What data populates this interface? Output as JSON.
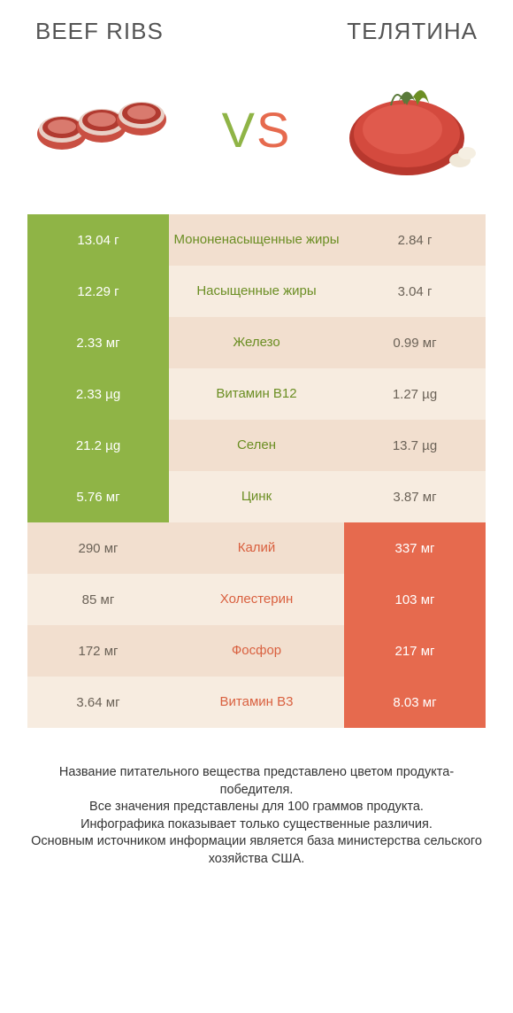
{
  "header": {
    "left": "Beef ribs",
    "right": "Телятина"
  },
  "vs": {
    "v": "V",
    "s": "S"
  },
  "colors": {
    "green": "#8fb446",
    "orange": "#e66a4e",
    "row_bg": "#f2dfcf",
    "row_bg_alt": "#f7ece0",
    "mid_green": "#6b8e23",
    "mid_orange": "#d9603f",
    "text": "#333333",
    "header_text": "#555555"
  },
  "rows": [
    {
      "left": "13.04 г",
      "mid": "Мононенасыщенные жиры",
      "right": "2.84 г",
      "winner": "left"
    },
    {
      "left": "12.29 г",
      "mid": "Насыщенные жиры",
      "right": "3.04 г",
      "winner": "left"
    },
    {
      "left": "2.33 мг",
      "mid": "Железо",
      "right": "0.99 мг",
      "winner": "left"
    },
    {
      "left": "2.33 µg",
      "mid": "Витамин B12",
      "right": "1.27 µg",
      "winner": "left"
    },
    {
      "left": "21.2 µg",
      "mid": "Селен",
      "right": "13.7 µg",
      "winner": "left"
    },
    {
      "left": "5.76 мг",
      "mid": "Цинк",
      "right": "3.87 мг",
      "winner": "left"
    },
    {
      "left": "290 мг",
      "mid": "Калий",
      "right": "337 мг",
      "winner": "right"
    },
    {
      "left": "85 мг",
      "mid": "Холестерин",
      "right": "103 мг",
      "winner": "right"
    },
    {
      "left": "172 мг",
      "mid": "Фосфор",
      "right": "217 мг",
      "winner": "right"
    },
    {
      "left": "3.64 мг",
      "mid": "Витамин B3",
      "right": "8.03 мг",
      "winner": "right"
    }
  ],
  "footer": {
    "l1": "Название питательного вещества представлено цветом продукта-победителя.",
    "l2": "Все значения представлены для 100 граммов продукта.",
    "l3": "Инфографика показывает только существенные различия.",
    "l4": "Основным источником информации является база министерства сельского хозяйства США."
  }
}
